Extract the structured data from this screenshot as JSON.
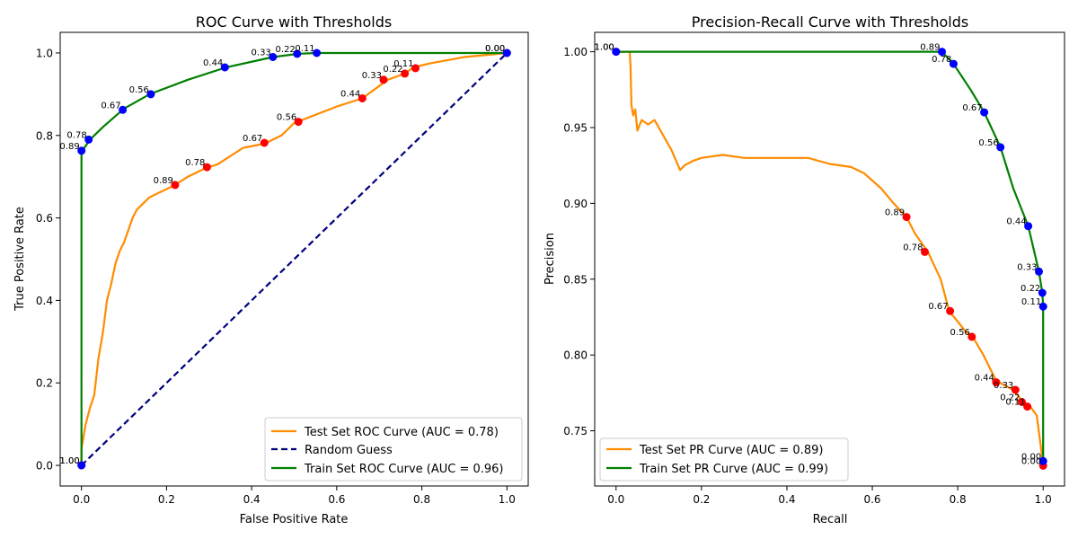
{
  "chart_data": [
    {
      "type": "line",
      "title": "ROC Curve with Thresholds",
      "xlabel": "False Positive Rate",
      "ylabel": "True Positive Rate",
      "xlim": [
        -0.05,
        1.05
      ],
      "ylim": [
        -0.05,
        1.05
      ],
      "xticks": [
        0.0,
        0.2,
        0.4,
        0.6,
        0.8,
        1.0
      ],
      "yticks": [
        0.0,
        0.2,
        0.4,
        0.6,
        0.8,
        1.0
      ],
      "xtick_labels": [
        "0.0",
        "0.2",
        "0.4",
        "0.6",
        "0.8",
        "1.0"
      ],
      "ytick_labels": [
        "0.0",
        "0.2",
        "0.4",
        "0.6",
        "0.8",
        "1.0"
      ],
      "grid": false,
      "legend_position": "bottom-right",
      "series": [
        {
          "name": "Test Set ROC Curve (AUC = 0.78)",
          "color": "#ff8c00",
          "dash": "solid",
          "x": [
            0,
            0,
            0.01,
            0.02,
            0.03,
            0.04,
            0.05,
            0.06,
            0.07,
            0.08,
            0.09,
            0.1,
            0.11,
            0.12,
            0.13,
            0.14,
            0.15,
            0.16,
            0.18,
            0.2,
            0.22,
            0.25,
            0.29,
            0.32,
            0.35,
            0.38,
            0.43,
            0.47,
            0.5,
            0.55,
            0.6,
            0.66,
            0.7,
            0.72,
            0.76,
            0.78,
            0.82,
            0.9,
            1.0
          ],
          "y": [
            0,
            0.04,
            0.1,
            0.14,
            0.17,
            0.26,
            0.32,
            0.4,
            0.44,
            0.49,
            0.52,
            0.54,
            0.57,
            0.6,
            0.62,
            0.63,
            0.64,
            0.65,
            0.66,
            0.67,
            0.68,
            0.7,
            0.72,
            0.73,
            0.75,
            0.77,
            0.78,
            0.8,
            0.83,
            0.85,
            0.87,
            0.89,
            0.92,
            0.935,
            0.95,
            0.965,
            0.975,
            0.99,
            1.0
          ]
        },
        {
          "name": "Random Guess",
          "color": "#000080",
          "dash": "dashed",
          "x": [
            0,
            1
          ],
          "y": [
            0,
            1
          ]
        },
        {
          "name": "Train Set ROC Curve (AUC = 0.96)",
          "color": "#008000",
          "dash": "solid",
          "x": [
            0,
            0,
            0,
            0.02,
            0.05,
            0.1,
            0.16,
            0.25,
            0.34,
            0.45,
            0.51,
            0.55,
            0.7,
            1.0
          ],
          "y": [
            0,
            0.5,
            0.76,
            0.79,
            0.82,
            0.865,
            0.9,
            0.935,
            0.965,
            0.99,
            0.998,
            1.0,
            1.0,
            1.0
          ]
        }
      ],
      "threshold_markers": [
        {
          "series": "test",
          "fill": "#ff0000",
          "edge": "#ff0000",
          "points": [
            {
              "x": 0.0,
              "y": 0.0,
              "label": "1.00"
            },
            {
              "x": 0.22,
              "y": 0.68,
              "label": "0.89"
            },
            {
              "x": 0.295,
              "y": 0.723,
              "label": "0.78"
            },
            {
              "x": 0.43,
              "y": 0.782,
              "label": "0.67"
            },
            {
              "x": 0.51,
              "y": 0.833,
              "label": "0.56"
            },
            {
              "x": 0.66,
              "y": 0.89,
              "label": "0.44"
            },
            {
              "x": 0.71,
              "y": 0.935,
              "label": "0.33"
            },
            {
              "x": 0.76,
              "y": 0.95,
              "label": "0.22"
            },
            {
              "x": 0.785,
              "y": 0.963,
              "label": "0.11"
            },
            {
              "x": 1.0,
              "y": 1.0,
              "label": "0.00"
            }
          ]
        },
        {
          "series": "train",
          "fill": "#0000ff",
          "edge": "#0000ff",
          "points": [
            {
              "x": 0.0,
              "y": 0.0,
              "label": "1.00"
            },
            {
              "x": 0.0,
              "y": 0.763,
              "label": "0.89"
            },
            {
              "x": 0.017,
              "y": 0.79,
              "label": "0.78"
            },
            {
              "x": 0.097,
              "y": 0.862,
              "label": "0.67"
            },
            {
              "x": 0.163,
              "y": 0.9,
              "label": "0.56"
            },
            {
              "x": 0.337,
              "y": 0.965,
              "label": "0.44"
            },
            {
              "x": 0.45,
              "y": 0.99,
              "label": "0.33"
            },
            {
              "x": 0.507,
              "y": 0.998,
              "label": "0.22"
            },
            {
              "x": 0.553,
              "y": 1.0,
              "label": "0.11"
            },
            {
              "x": 1.0,
              "y": 1.0,
              "label": "0.00"
            }
          ]
        }
      ]
    },
    {
      "type": "line",
      "title": "Precision-Recall Curve with Thresholds",
      "xlabel": "Recall",
      "ylabel": "Precision",
      "xlim": [
        -0.05,
        1.05
      ],
      "ylim": [
        0.7136,
        1.0128
      ],
      "xticks": [
        0.0,
        0.2,
        0.4,
        0.6,
        0.8,
        1.0
      ],
      "yticks": [
        0.75,
        0.8,
        0.85,
        0.9,
        0.95,
        1.0
      ],
      "xtick_labels": [
        "0.0",
        "0.2",
        "0.4",
        "0.6",
        "0.8",
        "1.0"
      ],
      "ytick_labels": [
        "0.75",
        "0.80",
        "0.85",
        "0.90",
        "0.95",
        "1.00"
      ],
      "grid": false,
      "legend_position": "bottom-left",
      "series": [
        {
          "name": "Test Set PR Curve (AUC = 0.89)",
          "color": "#ff8c00",
          "dash": "solid",
          "x": [
            0.0,
            0.032,
            0.034,
            0.036,
            0.04,
            0.045,
            0.05,
            0.06,
            0.075,
            0.09,
            0.11,
            0.13,
            0.15,
            0.16,
            0.18,
            0.2,
            0.25,
            0.3,
            0.35,
            0.4,
            0.45,
            0.5,
            0.55,
            0.58,
            0.62,
            0.65,
            0.68,
            0.7,
            0.73,
            0.76,
            0.78,
            0.8,
            0.82,
            0.835,
            0.86,
            0.89,
            0.93,
            0.95,
            0.97,
            0.985,
            1.0
          ],
          "y": [
            1.0,
            1.0,
            0.99,
            0.965,
            0.958,
            0.962,
            0.948,
            0.955,
            0.952,
            0.955,
            0.945,
            0.935,
            0.922,
            0.925,
            0.928,
            0.93,
            0.932,
            0.93,
            0.93,
            0.93,
            0.93,
            0.926,
            0.924,
            0.92,
            0.91,
            0.9,
            0.891,
            0.88,
            0.868,
            0.85,
            0.829,
            0.822,
            0.815,
            0.812,
            0.8,
            0.783,
            0.777,
            0.77,
            0.766,
            0.76,
            0.728
          ]
        },
        {
          "name": "Train Set PR Curve (AUC = 0.99)",
          "color": "#008000",
          "dash": "solid",
          "x": [
            0.0,
            0.5,
            0.763,
            0.79,
            0.83,
            0.862,
            0.9,
            0.93,
            0.965,
            0.99,
            0.998,
            1.0,
            1.0
          ],
          "y": [
            1.0,
            1.0,
            1.0,
            0.992,
            0.975,
            0.96,
            0.937,
            0.91,
            0.885,
            0.855,
            0.841,
            0.832,
            0.73
          ]
        }
      ],
      "threshold_markers": [
        {
          "series": "test",
          "fill": "#ff0000",
          "edge": "#ff0000",
          "points": [
            {
              "x": 0.0,
              "y": 1.0,
              "label": "1.00"
            },
            {
              "x": 0.68,
              "y": 0.891,
              "label": "0.89"
            },
            {
              "x": 0.723,
              "y": 0.868,
              "label": "0.78"
            },
            {
              "x": 0.782,
              "y": 0.829,
              "label": "0.67"
            },
            {
              "x": 0.833,
              "y": 0.812,
              "label": "0.56"
            },
            {
              "x": 0.89,
              "y": 0.782,
              "label": "0.44"
            },
            {
              "x": 0.935,
              "y": 0.777,
              "label": "0.33"
            },
            {
              "x": 0.95,
              "y": 0.769,
              "label": "0.22"
            },
            {
              "x": 0.963,
              "y": 0.766,
              "label": "0.11"
            },
            {
              "x": 1.0,
              "y": 0.727,
              "label": "0.00"
            }
          ]
        },
        {
          "series": "train",
          "fill": "#0000ff",
          "edge": "#0000ff",
          "points": [
            {
              "x": 0.0,
              "y": 1.0,
              "label": "1.00"
            },
            {
              "x": 0.763,
              "y": 1.0,
              "label": "0.89"
            },
            {
              "x": 0.79,
              "y": 0.992,
              "label": "0.78"
            },
            {
              "x": 0.862,
              "y": 0.96,
              "label": "0.67"
            },
            {
              "x": 0.9,
              "y": 0.937,
              "label": "0.56"
            },
            {
              "x": 0.965,
              "y": 0.885,
              "label": "0.44"
            },
            {
              "x": 0.99,
              "y": 0.855,
              "label": "0.33"
            },
            {
              "x": 0.998,
              "y": 0.841,
              "label": "0.22"
            },
            {
              "x": 1.0,
              "y": 0.832,
              "label": "0.11"
            },
            {
              "x": 1.0,
              "y": 0.73,
              "label": "0.00"
            }
          ]
        }
      ]
    }
  ]
}
